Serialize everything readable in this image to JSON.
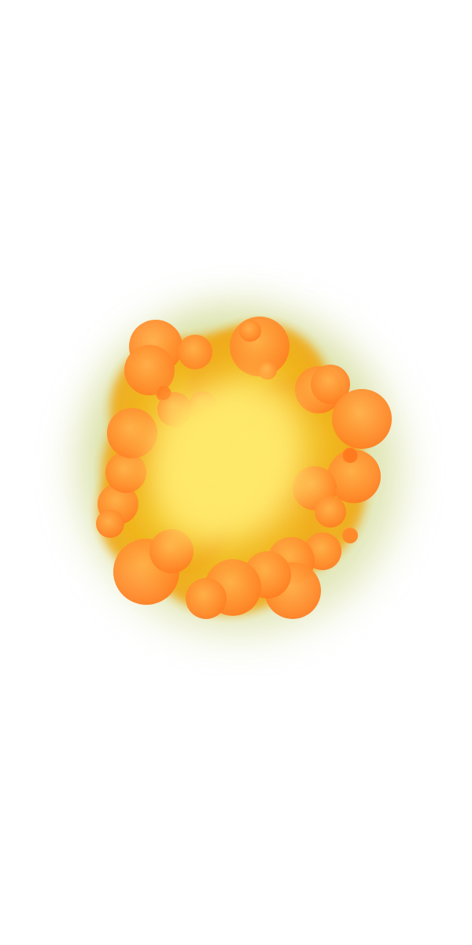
{
  "scene": {
    "subject": "explosion-cloud",
    "colors": {
      "background": "#ffffff",
      "glow": "#c8d27a",
      "outer_orange": "#ff8a2a",
      "mid_orange": "#ff9a3c",
      "inner_yellow": "#f0b21c",
      "core_light": "#ffe96a",
      "deep_orange": "#ff7a1e"
    }
  }
}
